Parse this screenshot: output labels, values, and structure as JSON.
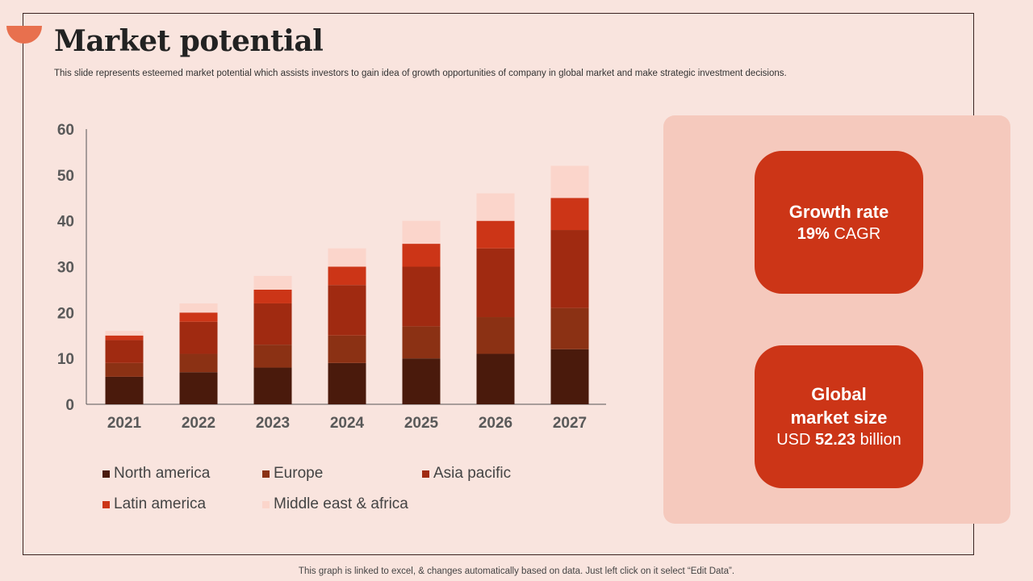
{
  "title": "Market potential",
  "subtitle": "This slide represents esteemed market potential which assists investors to gain idea of growth opportunities of company in global market and make strategic investment decisions.",
  "footer": "This graph is linked to excel, & changes automatically based on data. Just left click on it select “Edit Data”.",
  "colors": {
    "background": "#f9e4de",
    "panel": "#f5c9bd",
    "card": "#cc3517",
    "accent": "#e8704e"
  },
  "chart_data": {
    "type": "bar",
    "stacked": true,
    "title": "",
    "xlabel": "",
    "ylabel": "",
    "ylim": [
      0,
      60
    ],
    "yticks": [
      0,
      10,
      20,
      30,
      40,
      50,
      60
    ],
    "categories": [
      "2021",
      "2022",
      "2023",
      "2024",
      "2025",
      "2026",
      "2027"
    ],
    "series": [
      {
        "name": "North america",
        "color": "#4a1a0c",
        "values": [
          6,
          7,
          8,
          9,
          10,
          11,
          12
        ]
      },
      {
        "name": "Europe",
        "color": "#8b3114",
        "values": [
          3,
          4,
          5,
          6,
          7,
          8,
          9
        ]
      },
      {
        "name": "Asia pacific",
        "color": "#a02a11",
        "values": [
          5,
          7,
          9,
          11,
          13,
          15,
          17
        ]
      },
      {
        "name": "Latin america",
        "color": "#cc3517",
        "values": [
          1,
          2,
          3,
          4,
          5,
          6,
          7
        ]
      },
      {
        "name": "Middle east & africa",
        "color": "#fbd5cb",
        "values": [
          1,
          2,
          3,
          4,
          5,
          6,
          7
        ]
      }
    ],
    "legend_position": "bottom"
  },
  "cards": {
    "growth": {
      "title": "Growth rate",
      "value": "19%",
      "unit": "CAGR"
    },
    "market": {
      "title_line1": "Global",
      "title_line2": "market size",
      "prefix": "USD",
      "value": "52.23",
      "suffix": "billion"
    }
  }
}
